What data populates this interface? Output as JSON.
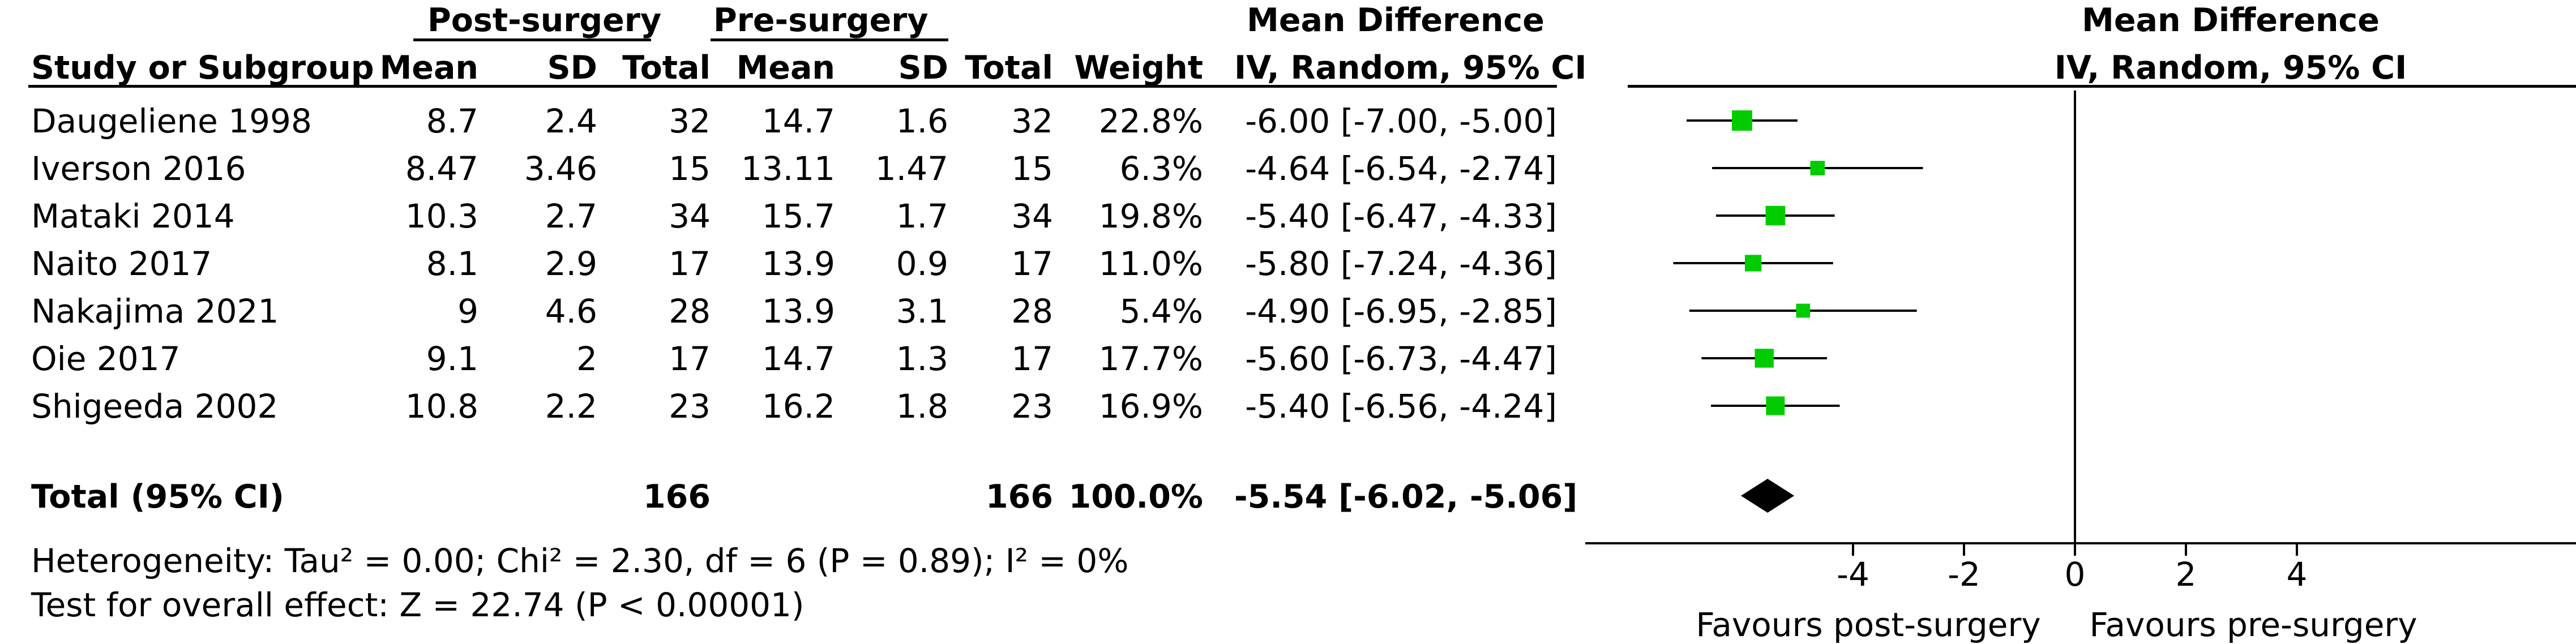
{
  "headers": {
    "group_post": "Post-surgery",
    "group_pre": "Pre-surgery",
    "study": "Study or Subgroup",
    "mean": "Mean",
    "sd": "SD",
    "total": "Total",
    "weight": "Weight",
    "md_title": "Mean Difference",
    "md_method": "IV, Random, 95% CI",
    "plot_title": "Mean Difference",
    "plot_method": "IV, Random, 95% CI"
  },
  "studies": [
    {
      "name": "Daugeliene 1998",
      "post_mean": "8.7",
      "post_sd": "2.4",
      "post_total": "32",
      "pre_mean": "14.7",
      "pre_sd": "1.6",
      "pre_total": "32",
      "weight": "22.8%",
      "ci_text": "-6.00 [-7.00, -5.00]"
    },
    {
      "name": "Iverson 2016",
      "post_mean": "8.47",
      "post_sd": "3.46",
      "post_total": "15",
      "pre_mean": "13.11",
      "pre_sd": "1.47",
      "pre_total": "15",
      "weight": "6.3%",
      "ci_text": "-4.64 [-6.54, -2.74]"
    },
    {
      "name": "Mataki 2014",
      "post_mean": "10.3",
      "post_sd": "2.7",
      "post_total": "34",
      "pre_mean": "15.7",
      "pre_sd": "1.7",
      "pre_total": "34",
      "weight": "19.8%",
      "ci_text": "-5.40 [-6.47, -4.33]"
    },
    {
      "name": "Naito 2017",
      "post_mean": "8.1",
      "post_sd": "2.9",
      "post_total": "17",
      "pre_mean": "13.9",
      "pre_sd": "0.9",
      "pre_total": "17",
      "weight": "11.0%",
      "ci_text": "-5.80 [-7.24, -4.36]"
    },
    {
      "name": "Nakajima 2021",
      "post_mean": "9",
      "post_sd": "4.6",
      "post_total": "28",
      "pre_mean": "13.9",
      "pre_sd": "3.1",
      "pre_total": "28",
      "weight": "5.4%",
      "ci_text": "-4.90 [-6.95, -2.85]"
    },
    {
      "name": "Oie 2017",
      "post_mean": "9.1",
      "post_sd": "2",
      "post_total": "17",
      "pre_mean": "14.7",
      "pre_sd": "1.3",
      "pre_total": "17",
      "weight": "17.7%",
      "ci_text": "-5.60 [-6.73, -4.47]"
    },
    {
      "name": "Shigeeda 2002",
      "post_mean": "10.8",
      "post_sd": "2.2",
      "post_total": "23",
      "pre_mean": "16.2",
      "pre_sd": "1.8",
      "pre_total": "23",
      "weight": "16.9%",
      "ci_text": "-5.40 [-6.56, -4.24]"
    }
  ],
  "total": {
    "label": "Total (95% CI)",
    "post_total": "166",
    "pre_total": "166",
    "weight": "100.0%",
    "ci_text": "-5.54 [-6.02, -5.06]"
  },
  "heterogeneity": "Heterogeneity: Tau² = 0.00; Chi² = 2.30, df = 6 (P = 0.89); I² = 0%",
  "overall_effect": "Test for overall effect: Z = 22.74 (P < 0.00001)",
  "favours_left": "Favours post-surgery",
  "favours_right": "Favours pre-surgery",
  "chart_data": {
    "type": "forest",
    "title": "Mean Difference",
    "subtitle": "IV, Random, 95% CI",
    "xlim": [
      -10,
      10
    ],
    "x_ticks": [
      -4,
      -2,
      0,
      2,
      4
    ],
    "x_tick_labels": [
      "-4",
      "-2",
      "0",
      "2",
      "4"
    ],
    "reference_line": 0,
    "marker_color": "#00cc00",
    "summary_color": "#000000",
    "points": [
      {
        "label": "Daugeliene 1998",
        "estimate": -6.0,
        "lower": -7.0,
        "upper": -5.0,
        "weight": 22.8
      },
      {
        "label": "Iverson 2016",
        "estimate": -4.64,
        "lower": -6.54,
        "upper": -2.74,
        "weight": 6.3
      },
      {
        "label": "Mataki 2014",
        "estimate": -5.4,
        "lower": -6.47,
        "upper": -4.33,
        "weight": 19.8
      },
      {
        "label": "Naito 2017",
        "estimate": -5.8,
        "lower": -7.24,
        "upper": -4.36,
        "weight": 11.0
      },
      {
        "label": "Nakajima 2021",
        "estimate": -4.9,
        "lower": -6.95,
        "upper": -2.85,
        "weight": 5.4
      },
      {
        "label": "Oie 2017",
        "estimate": -5.6,
        "lower": -6.73,
        "upper": -4.47,
        "weight": 17.7
      },
      {
        "label": "Shigeeda 2002",
        "estimate": -5.4,
        "lower": -6.56,
        "upper": -4.24,
        "weight": 16.9
      }
    ],
    "summary": {
      "label": "Total (95% CI)",
      "estimate": -5.54,
      "lower": -6.02,
      "upper": -5.06
    }
  }
}
